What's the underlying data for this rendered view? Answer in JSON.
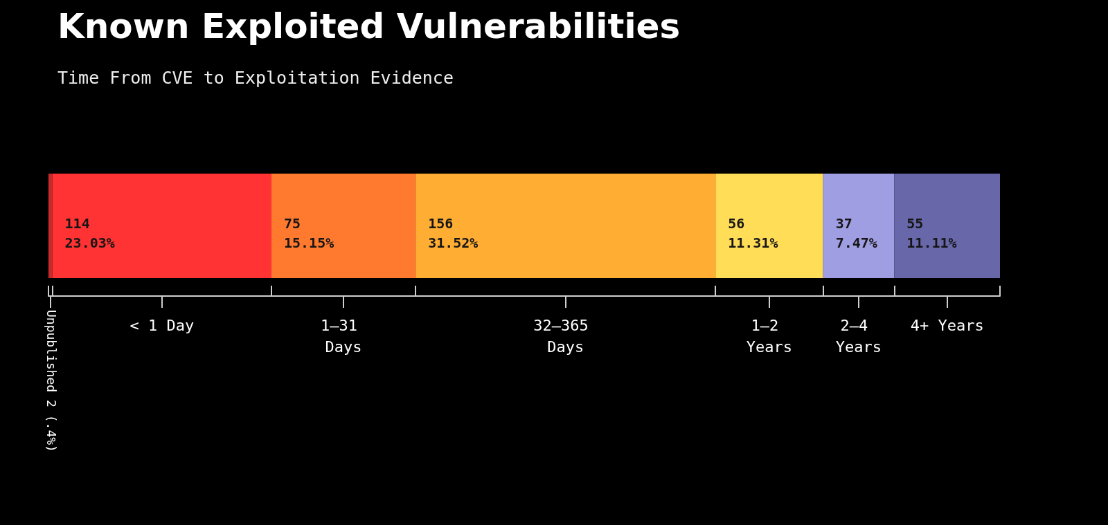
{
  "chart_data": {
    "type": "bar",
    "orientation": "horizontal",
    "stacked": true,
    "title": "Known Exploited Vulnerabilities",
    "subtitle": "Time From CVE to Exploitation Evidence",
    "categories": [
      null
    ],
    "legend": false,
    "grid": false,
    "series": [
      {
        "name": "Unpublished",
        "color": "#c62a2a",
        "values": [
          2
        ],
        "value_labels": [
          "2 (.4%)"
        ]
      },
      {
        "name": "< 1 Day",
        "color": "#ff3333",
        "values": [
          114
        ],
        "value_labels": [
          "114\n23.03%"
        ]
      },
      {
        "name": "1–31 Days",
        "color": "#ff7a2e",
        "values": [
          75
        ],
        "value_labels": [
          "75\n15.15%"
        ]
      },
      {
        "name": "32–365 Days",
        "color": "#ffad33",
        "values": [
          156
        ],
        "value_labels": [
          "156\n31.52%"
        ]
      },
      {
        "name": "1–2 Years",
        "color": "#ffdd57",
        "values": [
          56
        ],
        "value_labels": [
          "56\n11.31%"
        ]
      },
      {
        "name": "2–4 Years",
        "color": "#a09ee2",
        "values": [
          37
        ],
        "value_labels": [
          "37\n7.47%"
        ]
      },
      {
        "name": "4+ Years",
        "color": "#6767aa",
        "values": [
          55
        ],
        "value_labels": [
          "55\n11.11%"
        ]
      }
    ]
  }
}
